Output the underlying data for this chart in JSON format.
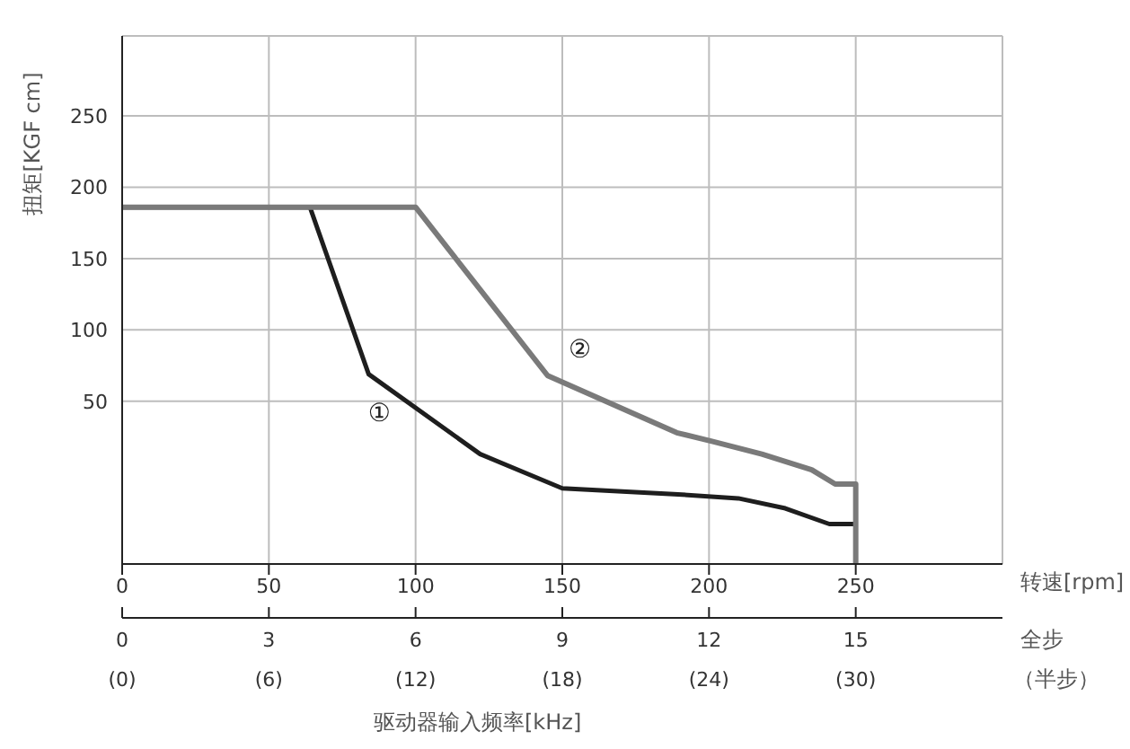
{
  "chart_data": {
    "type": "line",
    "ylabel": "扭矩[KGF cm]",
    "xlabel": "转速[rpm]",
    "x2label": "全步",
    "annotations": [
      "驱动器输入频率[kHz]",
      "（半步）",
      "(0)",
      "(6)",
      "(12)",
      "(18)",
      "(24)",
      "(30)"
    ],
    "series": [
      {
        "name": "①",
        "color": "#1e1e1e",
        "x": [
          0,
          64,
          84,
          122,
          150,
          188,
          210,
          226,
          241,
          250
        ],
        "values": [
          186,
          186,
          69,
          13,
          -11,
          -15,
          -18,
          -25,
          -36,
          -36
        ]
      },
      {
        "name": "②",
        "color": "#7a7a7a",
        "x": [
          0,
          100,
          145,
          189,
          201,
          218,
          235,
          243,
          250,
          250
        ],
        "values": [
          186,
          186,
          68,
          28,
          22,
          13,
          2,
          -8,
          -8,
          -64
        ]
      }
    ],
    "xlim": [
      0,
      300
    ],
    "xticks": [
      0,
      50,
      100,
      150,
      200,
      250
    ],
    "x2lim": [
      0,
      18
    ],
    "x2ticks": [
      0,
      3,
      6,
      9,
      12,
      15
    ],
    "ylim": [
      -64,
      306
    ],
    "yticks": [
      50,
      100,
      150,
      200,
      250
    ],
    "grid": true,
    "legend": false,
    "marker": "none",
    "line_style": "solid"
  }
}
